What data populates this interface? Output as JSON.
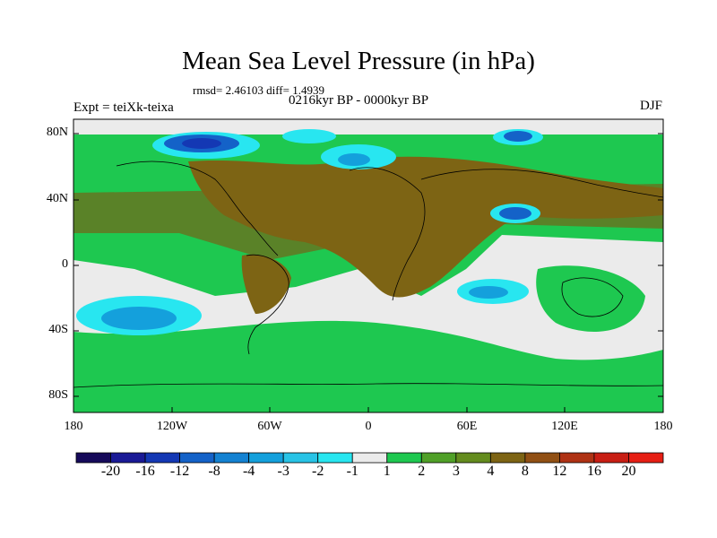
{
  "title": "Mean Sea Level Pressure (in hPa)",
  "stats_line": "rmsd= 2.46103 diff= 1.4939",
  "experiment": "Expt = teiXk-teixa",
  "period": "0216kyr BP - 0000kyr BP",
  "season": "DJF",
  "lat_labels": [
    "80N",
    "40N",
    "0",
    "40S",
    "80S"
  ],
  "lon_labels": [
    "180",
    "120W",
    "60W",
    "0",
    "60E",
    "120E",
    "180"
  ],
  "colorbar": {
    "labels": [
      "-20",
      "-16",
      "-12",
      "-8",
      "-4",
      "-3",
      "-2",
      "-1",
      "1",
      "2",
      "3",
      "4",
      "8",
      "12",
      "16",
      "20"
    ],
    "colors": [
      "#160a5a",
      "#1a1a96",
      "#1438b4",
      "#1462c8",
      "#1482d2",
      "#14a0dc",
      "#28c3e6",
      "#28e6f0",
      "#ebebeb",
      "#1ec850",
      "#50a028",
      "#648c1e",
      "#7d6414",
      "#915014",
      "#af3214",
      "#c81e14",
      "#e61e14"
    ]
  },
  "field_colors": {
    "neutral": "#ebebeb",
    "green": "#1ec850",
    "olive": "#5a8228",
    "brown": "#7d6414",
    "light_cyan": "#28e6f0",
    "cyan": "#14a0dc",
    "blue": "#1462c8",
    "deep_blue": "#1438b4"
  }
}
